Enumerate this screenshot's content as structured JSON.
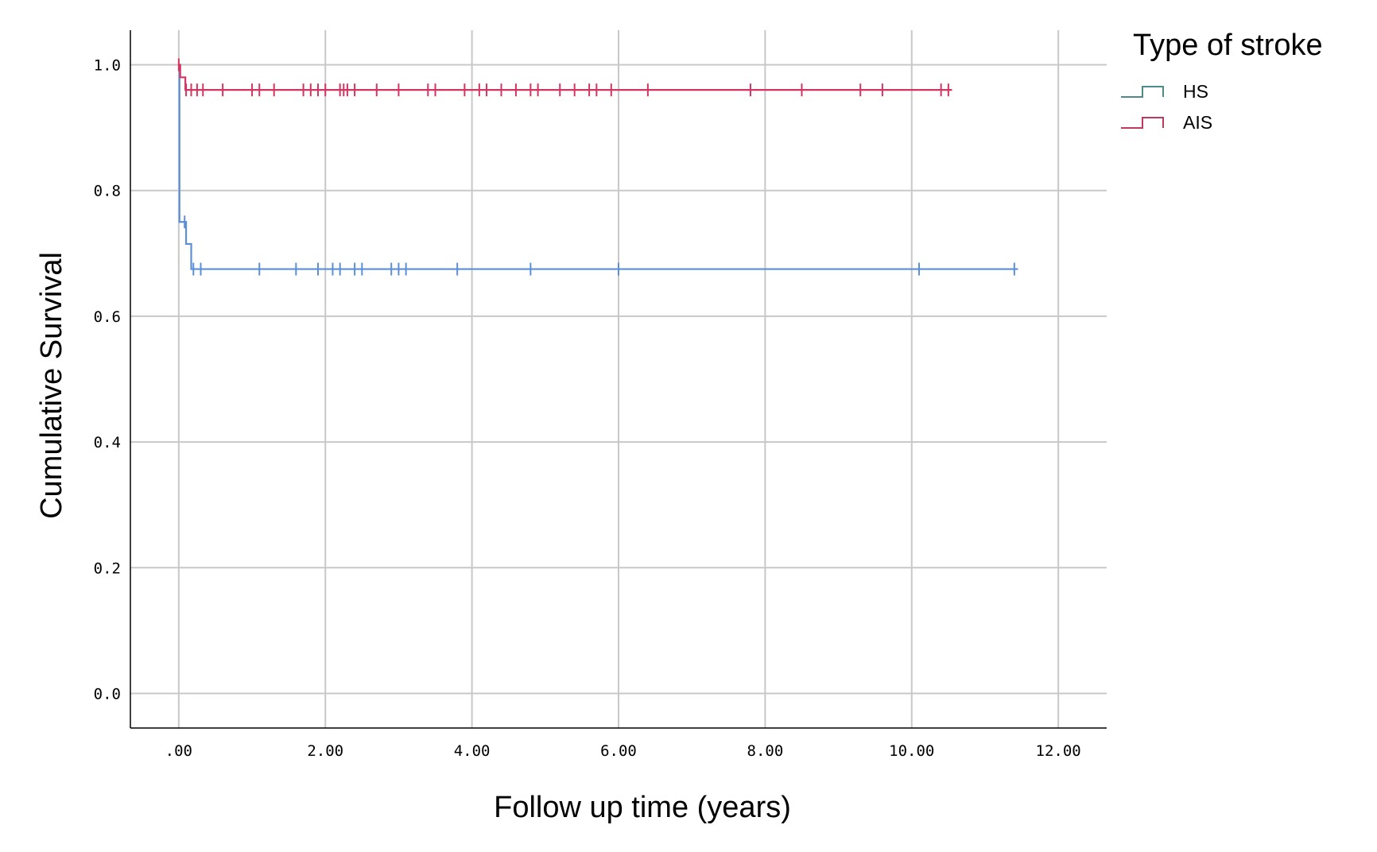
{
  "chart_data": {
    "type": "line",
    "subtype": "kaplan-meier",
    "xlabel": "Follow up time (years)",
    "ylabel": "Cumulative Survival",
    "xlim": [
      -0.66,
      12.66
    ],
    "ylim": [
      -0.055,
      1.055
    ],
    "x_ticks": [
      0,
      2,
      4,
      6,
      8,
      10,
      12
    ],
    "x_tick_labels": [
      ".00",
      "2.00",
      "4.00",
      "6.00",
      "8.00",
      "10.00",
      "12.00"
    ],
    "y_ticks": [
      0.0,
      0.2,
      0.4,
      0.6,
      0.8,
      1.0
    ],
    "y_tick_labels": [
      "0.0",
      "0.2",
      "0.4",
      "0.6",
      "0.8",
      "1.0"
    ],
    "grid": true,
    "legend": {
      "title": "Type of stroke",
      "position": "top-right outside"
    },
    "series": [
      {
        "name": "HS",
        "color": "#5b8fd6",
        "legend_color": "#4f8a8b",
        "steps": [
          [
            0,
            1.0
          ],
          [
            0.01,
            0.75
          ],
          [
            0.1,
            0.715
          ],
          [
            0.17,
            0.675
          ],
          [
            11.45,
            0.675
          ]
        ],
        "censored": [
          0.08,
          0.2,
          0.3,
          1.1,
          1.6,
          1.9,
          2.1,
          2.2,
          2.4,
          2.5,
          2.9,
          3.0,
          3.1,
          3.8,
          4.8,
          6.0,
          10.1,
          11.4
        ]
      },
      {
        "name": "AIS",
        "color": "#d43460",
        "legend_color": "#c03a5e",
        "steps": [
          [
            0,
            1.0
          ],
          [
            0.02,
            0.98
          ],
          [
            0.09,
            0.96
          ],
          [
            10.55,
            0.96
          ]
        ],
        "censored": [
          0.0,
          0.1,
          0.17,
          0.25,
          0.33,
          0.6,
          1.0,
          1.1,
          1.3,
          1.7,
          1.8,
          1.9,
          2.0,
          2.2,
          2.25,
          2.3,
          2.4,
          2.7,
          3.0,
          3.4,
          3.5,
          3.9,
          4.1,
          4.2,
          4.4,
          4.6,
          4.8,
          4.9,
          5.2,
          5.4,
          5.6,
          5.7,
          5.9,
          6.4,
          7.8,
          8.5,
          9.3,
          9.6,
          10.4,
          10.5
        ]
      }
    ]
  }
}
